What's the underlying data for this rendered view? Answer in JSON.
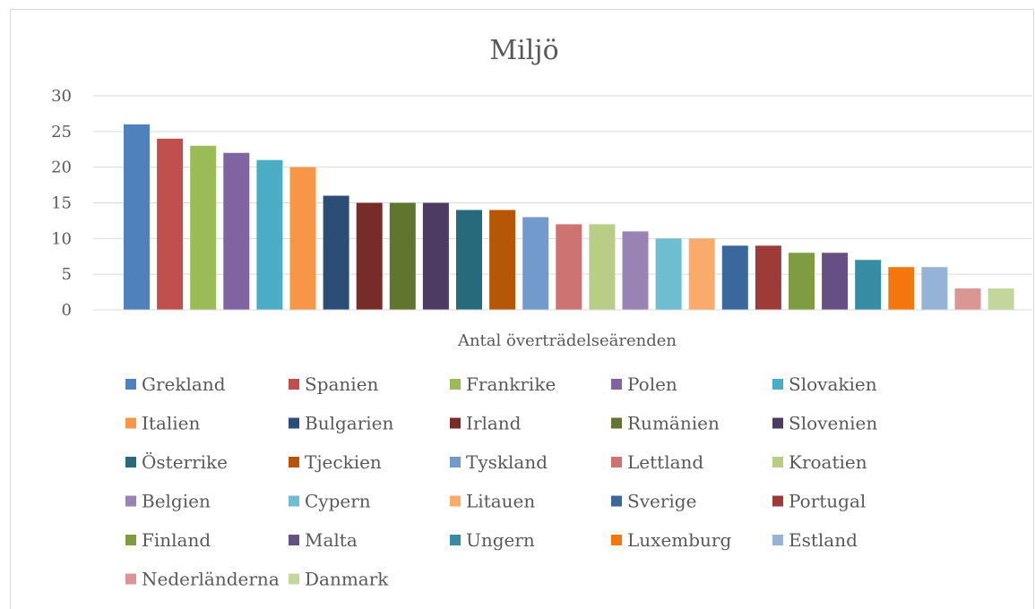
{
  "chart_data": {
    "type": "bar",
    "title": "Miljö",
    "xlabel": "Antal överträdelseärenden",
    "ylabel": "",
    "ylim": [
      0,
      30
    ],
    "yticks": [
      0,
      5,
      10,
      15,
      20,
      25,
      30
    ],
    "grid": true,
    "legend_position": "bottom",
    "series": [
      {
        "name": "Grekland",
        "value": 26,
        "color": "#4f81bd"
      },
      {
        "name": "Spanien",
        "value": 24,
        "color": "#c0504d"
      },
      {
        "name": "Frankrike",
        "value": 23,
        "color": "#9bbb59"
      },
      {
        "name": "Polen",
        "value": 22,
        "color": "#8064a2"
      },
      {
        "name": "Slovakien",
        "value": 21,
        "color": "#4bacc6"
      },
      {
        "name": "Italien",
        "value": 20,
        "color": "#f79646"
      },
      {
        "name": "Bulgarien",
        "value": 16,
        "color": "#2c4d75"
      },
      {
        "name": "Irland",
        "value": 15,
        "color": "#772c2a"
      },
      {
        "name": "Rumänien",
        "value": 15,
        "color": "#5f7530"
      },
      {
        "name": "Slovenien",
        "value": 15,
        "color": "#4d3b62"
      },
      {
        "name": "Österrike",
        "value": 14,
        "color": "#276a7c"
      },
      {
        "name": "Tjeckien",
        "value": 14,
        "color": "#b65708"
      },
      {
        "name": "Tyskland",
        "value": 13,
        "color": "#729aca"
      },
      {
        "name": "Lettland",
        "value": 12,
        "color": "#cd7371"
      },
      {
        "name": "Kroatien",
        "value": 12,
        "color": "#b8cd86"
      },
      {
        "name": "Belgien",
        "value": 11,
        "color": "#9983b5"
      },
      {
        "name": "Cypern",
        "value": 10,
        "color": "#6ebdd1"
      },
      {
        "name": "Litauen",
        "value": 10,
        "color": "#f9ab6b"
      },
      {
        "name": "Sverige",
        "value": 9,
        "color": "#3a679c"
      },
      {
        "name": "Portugal",
        "value": 9,
        "color": "#9e3b38"
      },
      {
        "name": "Finland",
        "value": 8,
        "color": "#7e9c40"
      },
      {
        "name": "Malta",
        "value": 8,
        "color": "#664f83"
      },
      {
        "name": "Ungern",
        "value": 7,
        "color": "#358ca3"
      },
      {
        "name": "Luxemburg",
        "value": 6,
        "color": "#f4770e"
      },
      {
        "name": "Estland",
        "value": 6,
        "color": "#95b3d7"
      },
      {
        "name": "Nederländerna",
        "value": 3,
        "color": "#d99694"
      },
      {
        "name": "Danmark",
        "value": 3,
        "color": "#c3d69b"
      }
    ]
  }
}
